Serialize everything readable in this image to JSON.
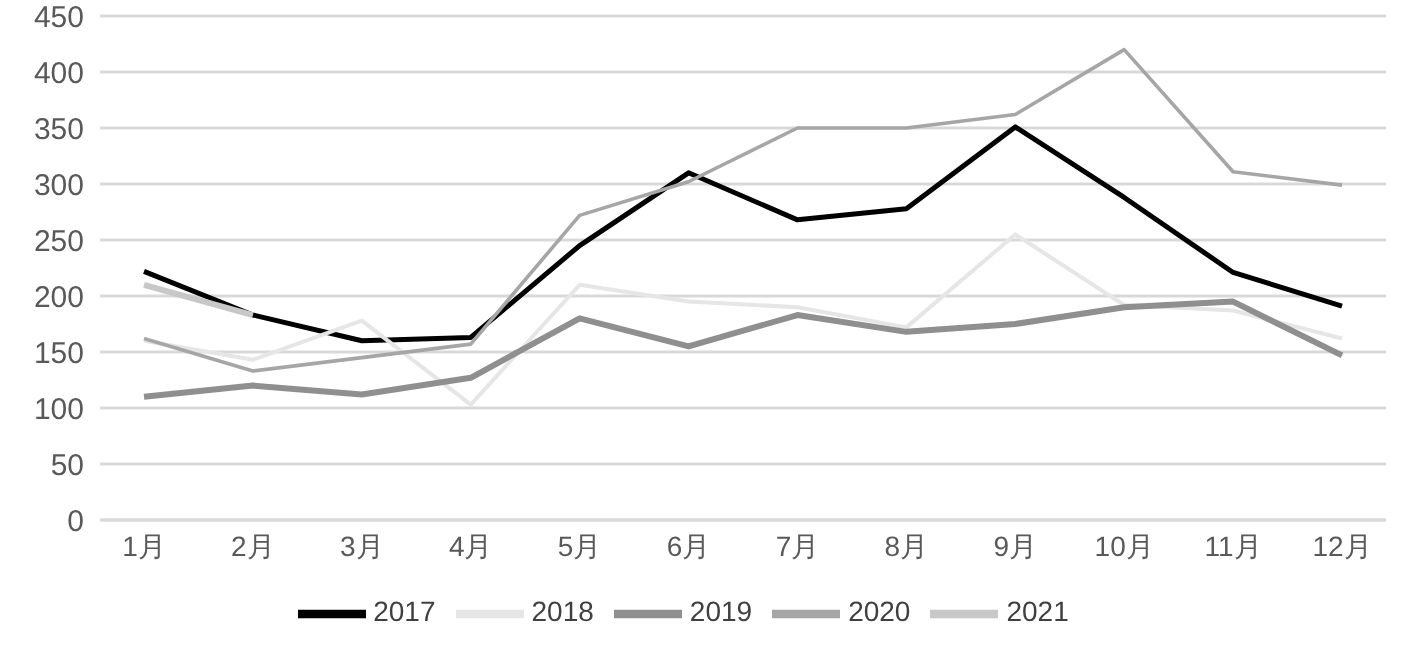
{
  "chart_data": {
    "type": "line",
    "categories": [
      "1月",
      "2月",
      "3月",
      "4月",
      "5月",
      "6月",
      "7月",
      "8月",
      "9月",
      "10月",
      "11月",
      "12月"
    ],
    "series": [
      {
        "name": "2017",
        "color": "#000000",
        "values": [
          222,
          183,
          160,
          163,
          245,
          310,
          268,
          278,
          351,
          288,
          221,
          191
        ]
      },
      {
        "name": "2018",
        "color": "#e6e6e6",
        "values": [
          160,
          143,
          178,
          103,
          210,
          195,
          190,
          172,
          255,
          192,
          187,
          162
        ]
      },
      {
        "name": "2019",
        "color": "#8f8f8f",
        "values": [
          110,
          120,
          112,
          127,
          180,
          155,
          183,
          168,
          175,
          190,
          195,
          147
        ]
      },
      {
        "name": "2020",
        "color": "#a6a6a6",
        "values": [
          162,
          133,
          145,
          157,
          272,
          302,
          350,
          350,
          362,
          420,
          311,
          299
        ]
      },
      {
        "name": "2021",
        "color": "#c8c8c8",
        "values": [
          210,
          183,
          null,
          null,
          null,
          null,
          null,
          null,
          null,
          null,
          null,
          null
        ]
      }
    ],
    "ylim": [
      0,
      450
    ],
    "yticks": [
      0,
      50,
      100,
      150,
      200,
      250,
      300,
      350,
      400,
      450
    ],
    "grid": "y",
    "legend": "bottom",
    "marker": "none",
    "line_style": "solid"
  }
}
